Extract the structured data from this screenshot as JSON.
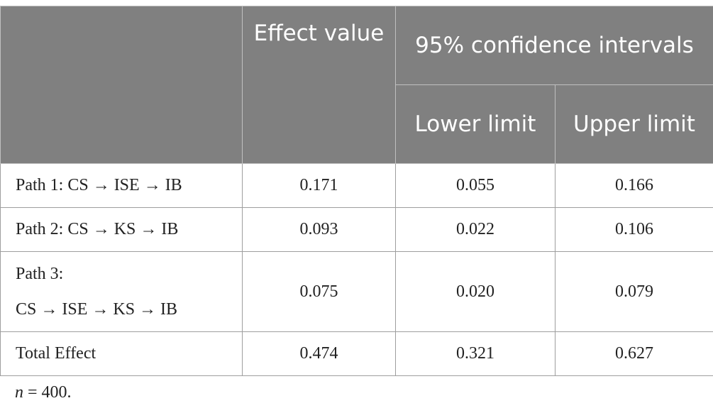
{
  "header": {
    "effect_value": "Effect value",
    "ci": "95% confidence intervals",
    "lower": "Lower limit",
    "upper": "Upper limit"
  },
  "rows": [
    {
      "path_line1": "Path 1: CS → ISE → IB",
      "effect": "0.171",
      "lower": "0.055",
      "upper": "0.166"
    },
    {
      "path_line1": "Path 2: CS → KS → IB",
      "effect": "0.093",
      "lower": "0.022",
      "upper": "0.106"
    },
    {
      "path_line1": "Path 3:",
      "path_line2": "CS → ISE → KS → IB",
      "effect": "0.075",
      "lower": "0.020",
      "upper": "0.079"
    },
    {
      "path_line1": "Total Effect",
      "effect": "0.474",
      "lower": "0.321",
      "upper": "0.627"
    }
  ],
  "note": {
    "var": "n",
    "rest": " = 400."
  }
}
